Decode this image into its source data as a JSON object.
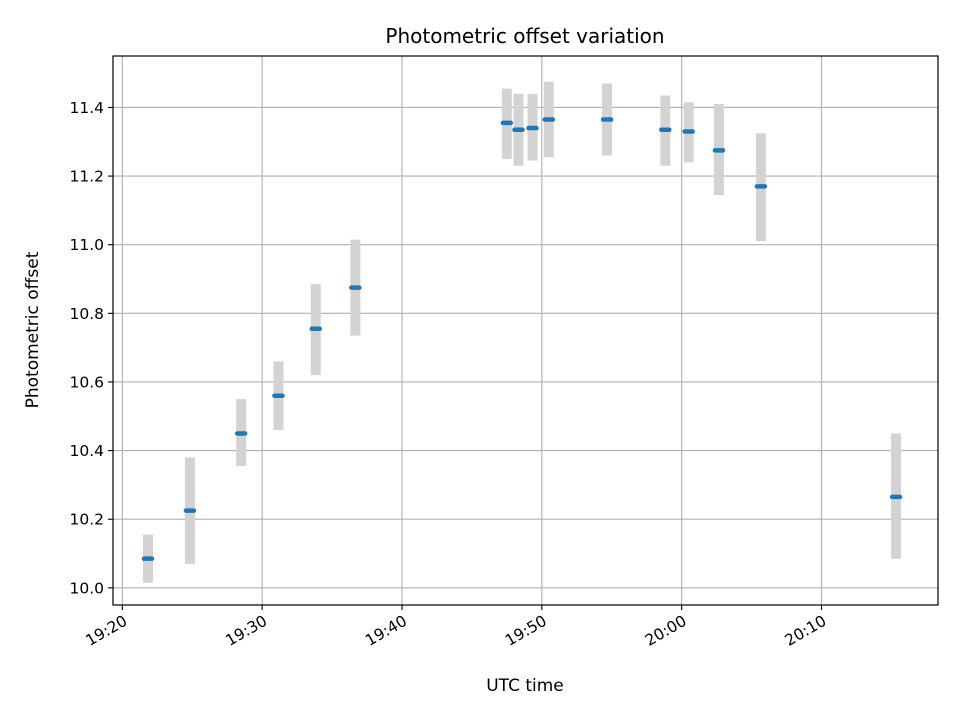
{
  "chart_data": {
    "type": "scatter",
    "title": "Photometric offset variation",
    "xlabel": "UTC time",
    "ylabel": "Photometric offset",
    "xlim": [
      "19:19:20",
      "20:18:20"
    ],
    "ylim": [
      9.95,
      11.55
    ],
    "x_ticks": [
      "19:20",
      "19:30",
      "19:40",
      "19:50",
      "20:00",
      "20:10"
    ],
    "y_ticks": [
      "10.0",
      "10.2",
      "10.4",
      "10.6",
      "10.8",
      "11.0",
      "11.2",
      "11.4"
    ],
    "grid": true,
    "points": [
      {
        "time": "19:21:50",
        "y": 10.085,
        "low": 10.015,
        "high": 10.155
      },
      {
        "time": "19:24:50",
        "y": 10.225,
        "low": 10.07,
        "high": 10.38
      },
      {
        "time": "19:28:30",
        "y": 10.45,
        "low": 10.355,
        "high": 10.55
      },
      {
        "time": "19:31:10",
        "y": 10.56,
        "low": 10.46,
        "high": 10.66
      },
      {
        "time": "19:33:50",
        "y": 10.755,
        "low": 10.62,
        "high": 10.885
      },
      {
        "time": "19:36:40",
        "y": 10.875,
        "low": 10.735,
        "high": 11.015
      },
      {
        "time": "19:47:30",
        "y": 11.355,
        "low": 11.25,
        "high": 11.455
      },
      {
        "time": "19:48:20",
        "y": 11.335,
        "low": 11.23,
        "high": 11.44
      },
      {
        "time": "19:49:20",
        "y": 11.34,
        "low": 11.245,
        "high": 11.44
      },
      {
        "time": "19:50:30",
        "y": 11.365,
        "low": 11.255,
        "high": 11.475
      },
      {
        "time": "19:54:40",
        "y": 11.365,
        "low": 11.26,
        "high": 11.47
      },
      {
        "time": "19:58:50",
        "y": 11.335,
        "low": 11.23,
        "high": 11.435
      },
      {
        "time": "20:00:30",
        "y": 11.33,
        "low": 11.24,
        "high": 11.415
      },
      {
        "time": "20:02:40",
        "y": 11.275,
        "low": 11.145,
        "high": 11.41
      },
      {
        "time": "20:05:40",
        "y": 11.17,
        "low": 11.01,
        "high": 11.325
      },
      {
        "time": "20:15:20",
        "y": 10.265,
        "low": 10.085,
        "high": 10.45
      }
    ],
    "colors": {
      "marker": "#1f77b4",
      "errorbar": "#d3d3d3",
      "grid": "#b0b0b0"
    }
  }
}
